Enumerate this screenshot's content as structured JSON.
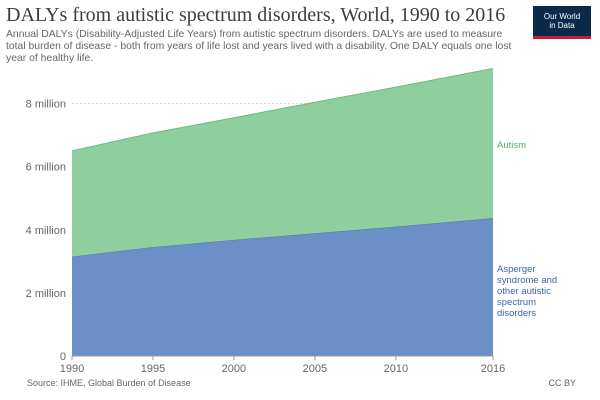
{
  "header": {
    "title": "DALYs from autistic spectrum disorders, World, 1990 to 2016",
    "subtitle": "Annual DALYs (Disability-Adjusted Life Years) from autistic spectrum disorders. DALYs are used to measure total burden of disease - both from years of life lost and years lived with a disability. One DALY equals one lost year of healthy life.",
    "logo_line1": "Our World",
    "logo_line2": "in Data"
  },
  "footer": {
    "source": "Source: IHME, Global Burden of Disease",
    "license": "CC BY"
  },
  "colors": {
    "asperger": "#6b8fc7",
    "autism": "#8fcf9e",
    "autism_label": "#4fae6b",
    "asperger_label": "#3b63b0",
    "grid": "#dddddd"
  },
  "chart_data": {
    "type": "area",
    "stacked": true,
    "x": [
      1990,
      1995,
      2000,
      2005,
      2010,
      2016
    ],
    "xlim": [
      1990,
      2016
    ],
    "ylim": [
      0,
      9000000
    ],
    "x_ticks": [
      1990,
      1995,
      2000,
      2005,
      2010,
      2016
    ],
    "x_tick_labels": [
      "1990",
      "1995",
      "2000",
      "2005",
      "2010",
      "2016"
    ],
    "y_ticks": [
      0,
      2000000,
      4000000,
      6000000,
      8000000
    ],
    "y_tick_labels": [
      "0",
      "2 million",
      "4 million",
      "6 million",
      "8 million"
    ],
    "grid": "horizontal dotted",
    "series": [
      {
        "name": "Asperger syndrome and other autistic spectrum disorders",
        "label_lines": [
          "Asperger",
          "syndrome and",
          "other autistic",
          "spectrum",
          "disorders"
        ],
        "values": [
          3150000,
          3450000,
          3680000,
          3890000,
          4100000,
          4370000
        ]
      },
      {
        "name": "Autism",
        "label_lines": [
          "Autism"
        ],
        "values": [
          3350000,
          3620000,
          3870000,
          4150000,
          4420000,
          4740000
        ]
      }
    ]
  }
}
